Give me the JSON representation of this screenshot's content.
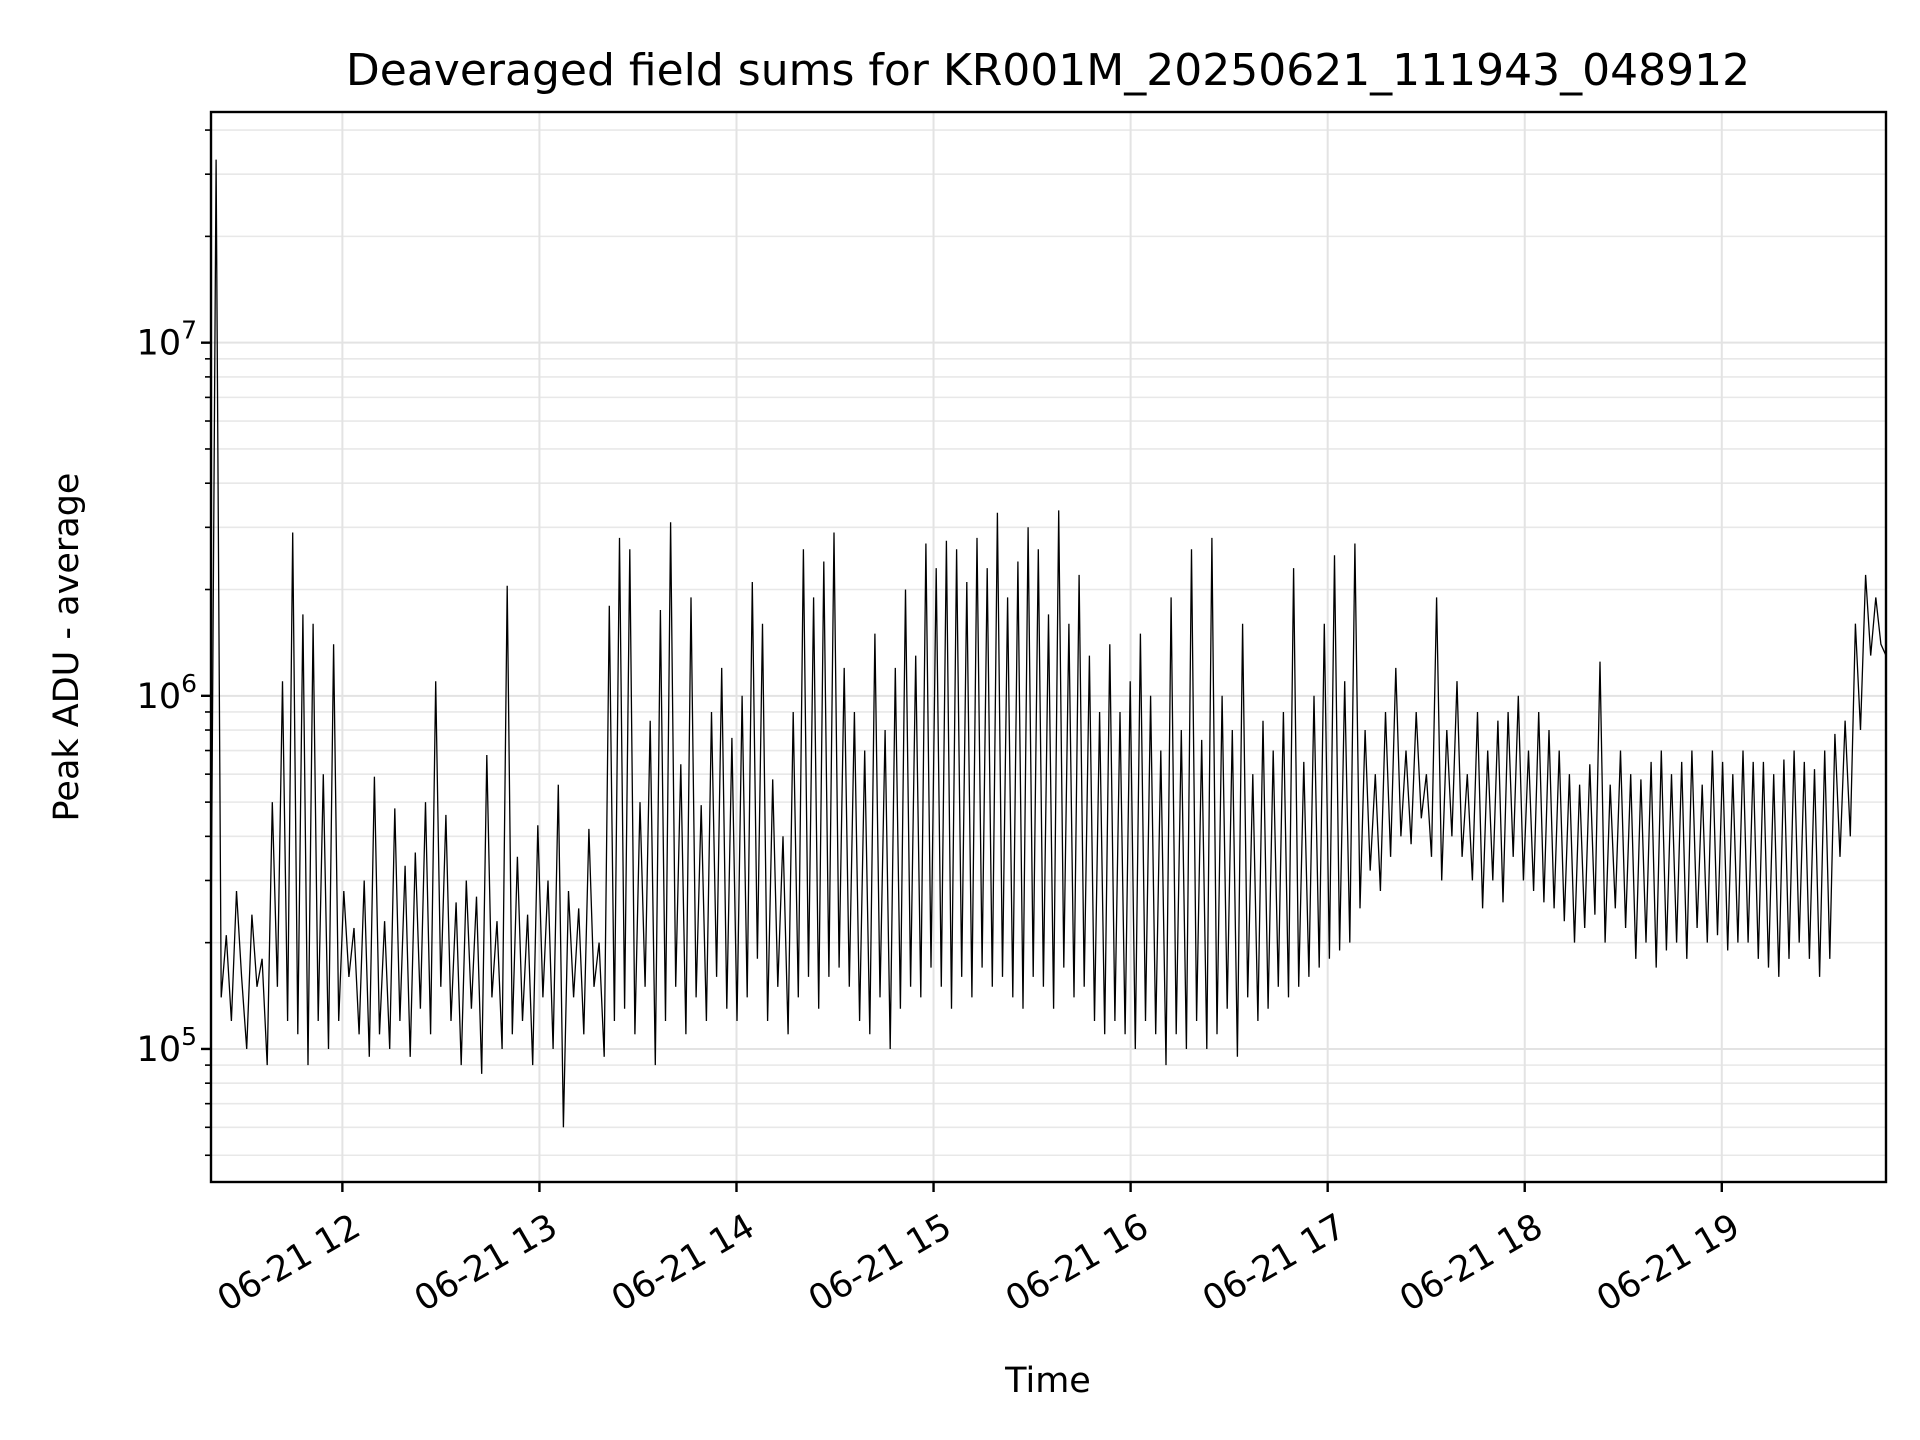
{
  "chart_data": {
    "type": "line",
    "title": "Deaveraged field sums for KR001M_20250621_111943_048912",
    "xlabel": "Time",
    "ylabel": "Peak ADU - average",
    "yscale": "log",
    "ylim": [
      42000,
      45000000
    ],
    "xlim": [
      "2025-06-21 11:20",
      "2025-06-21 19:50"
    ],
    "grid": true,
    "legend": "none",
    "line_color": "#000000",
    "x_ticks": [
      "06-21 12",
      "06-21 13",
      "06-21 14",
      "06-21 15",
      "06-21 16",
      "06-21 17",
      "06-21 18",
      "06-21 19"
    ],
    "y_ticks": [
      {
        "base": "10",
        "exp": "5",
        "value": 100000
      },
      {
        "base": "10",
        "exp": "6",
        "value": 1000000
      },
      {
        "base": "10",
        "exp": "7",
        "value": 10000000
      }
    ],
    "series": [
      {
        "x_start": "2025-06-21 11:20",
        "x_end": "2025-06-21 19:50",
        "values": [
          190000,
          33000000,
          140000,
          210000,
          120000,
          280000,
          160000,
          100000,
          240000,
          150000,
          180000,
          90000,
          500000,
          150000,
          1100000,
          120000,
          2900000,
          110000,
          1700000,
          90000,
          1600000,
          120000,
          600000,
          100000,
          1400000,
          120000,
          280000,
          160000,
          220000,
          110000,
          300000,
          95000,
          590000,
          110000,
          230000,
          100000,
          480000,
          120000,
          330000,
          95000,
          360000,
          130000,
          500000,
          110000,
          1100000,
          150000,
          460000,
          120000,
          260000,
          90000,
          300000,
          130000,
          270000,
          85000,
          680000,
          140000,
          230000,
          100000,
          2050000,
          110000,
          350000,
          120000,
          240000,
          90000,
          430000,
          140000,
          300000,
          100000,
          560000,
          60000,
          280000,
          140000,
          250000,
          110000,
          420000,
          150000,
          200000,
          95000,
          1800000,
          120000,
          2800000,
          130000,
          2600000,
          110000,
          500000,
          150000,
          850000,
          90000,
          1750000,
          120000,
          3100000,
          150000,
          640000,
          110000,
          1900000,
          140000,
          490000,
          120000,
          900000,
          160000,
          1200000,
          130000,
          760000,
          120000,
          1000000,
          140000,
          2100000,
          180000,
          1600000,
          120000,
          580000,
          150000,
          400000,
          110000,
          900000,
          140000,
          2600000,
          160000,
          1900000,
          130000,
          2400000,
          160000,
          2900000,
          170000,
          1200000,
          150000,
          900000,
          120000,
          700000,
          110000,
          1500000,
          140000,
          800000,
          100000,
          1200000,
          130000,
          2000000,
          150000,
          1300000,
          140000,
          2700000,
          170000,
          2300000,
          150000,
          2750000,
          130000,
          2600000,
          160000,
          2100000,
          140000,
          2800000,
          170000,
          2300000,
          150000,
          3300000,
          160000,
          1900000,
          140000,
          2400000,
          130000,
          3000000,
          160000,
          2600000,
          150000,
          1700000,
          130000,
          3350000,
          170000,
          1600000,
          140000,
          2200000,
          150000,
          1300000,
          120000,
          900000,
          110000,
          1400000,
          120000,
          900000,
          110000,
          1100000,
          100000,
          1500000,
          120000,
          1000000,
          110000,
          700000,
          90000,
          1900000,
          110000,
          800000,
          100000,
          2600000,
          120000,
          750000,
          100000,
          2800000,
          110000,
          1000000,
          130000,
          800000,
          95000,
          1600000,
          140000,
          600000,
          120000,
          850000,
          130000,
          700000,
          150000,
          900000,
          140000,
          2300000,
          150000,
          650000,
          160000,
          1000000,
          170000,
          1600000,
          180000,
          2500000,
          190000,
          1100000,
          200000,
          2700000,
          250000,
          800000,
          320000,
          600000,
          280000,
          900000,
          350000,
          1200000,
          400000,
          700000,
          380000,
          900000,
          450000,
          600000,
          350000,
          1900000,
          300000,
          800000,
          400000,
          1100000,
          350000,
          600000,
          300000,
          900000,
          250000,
          700000,
          300000,
          850000,
          260000,
          900000,
          350000,
          1000000,
          300000,
          700000,
          280000,
          900000,
          260000,
          800000,
          250000,
          700000,
          230000,
          600000,
          200000,
          560000,
          220000,
          640000,
          240000,
          1250000,
          200000,
          560000,
          250000,
          700000,
          220000,
          600000,
          180000,
          580000,
          200000,
          650000,
          170000,
          700000,
          190000,
          600000,
          200000,
          650000,
          180000,
          700000,
          220000,
          560000,
          200000,
          700000,
          210000,
          650000,
          190000,
          600000,
          200000,
          700000,
          200000,
          650000,
          180000,
          650000,
          170000,
          600000,
          160000,
          660000,
          180000,
          700000,
          200000,
          650000,
          180000,
          620000,
          160000,
          700000,
          180000,
          780000,
          350000,
          850000,
          400000,
          1600000,
          800000,
          2200000,
          1300000,
          1900000,
          1400000,
          1300000
        ]
      }
    ]
  }
}
